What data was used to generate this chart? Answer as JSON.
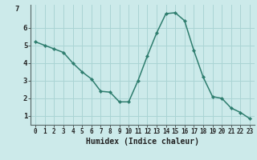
{
  "x": [
    0,
    1,
    2,
    3,
    4,
    5,
    6,
    7,
    8,
    9,
    10,
    11,
    12,
    13,
    14,
    15,
    16,
    17,
    18,
    19,
    20,
    21,
    22,
    23
  ],
  "y": [
    5.2,
    5.0,
    4.8,
    4.6,
    4.0,
    3.5,
    3.1,
    2.4,
    2.35,
    1.8,
    1.8,
    3.0,
    4.4,
    5.7,
    6.8,
    6.85,
    6.4,
    4.7,
    3.2,
    2.1,
    2.0,
    1.45,
    1.2,
    0.85
  ],
  "xlabel": "Humidex (Indice chaleur)",
  "ylim": [
    0.5,
    7.3
  ],
  "xlim": [
    -0.5,
    23.5
  ],
  "line_color": "#2e7d6e",
  "marker_color": "#2e7d6e",
  "bg_color": "#cceaea",
  "grid_color": "#aad4d4",
  "axis_color": "#555555",
  "tick_labels": [
    "0",
    "1",
    "2",
    "3",
    "4",
    "5",
    "6",
    "7",
    "8",
    "9",
    "10",
    "11",
    "12",
    "13",
    "14",
    "15",
    "16",
    "17",
    "18",
    "19",
    "20",
    "21",
    "22",
    "23"
  ],
  "ytick_labels": [
    "1",
    "2",
    "3",
    "4",
    "5",
    "6"
  ],
  "ytick_values": [
    1,
    2,
    3,
    4,
    5,
    6
  ],
  "xlabel_fontsize": 7,
  "tick_fontsize": 5.5
}
